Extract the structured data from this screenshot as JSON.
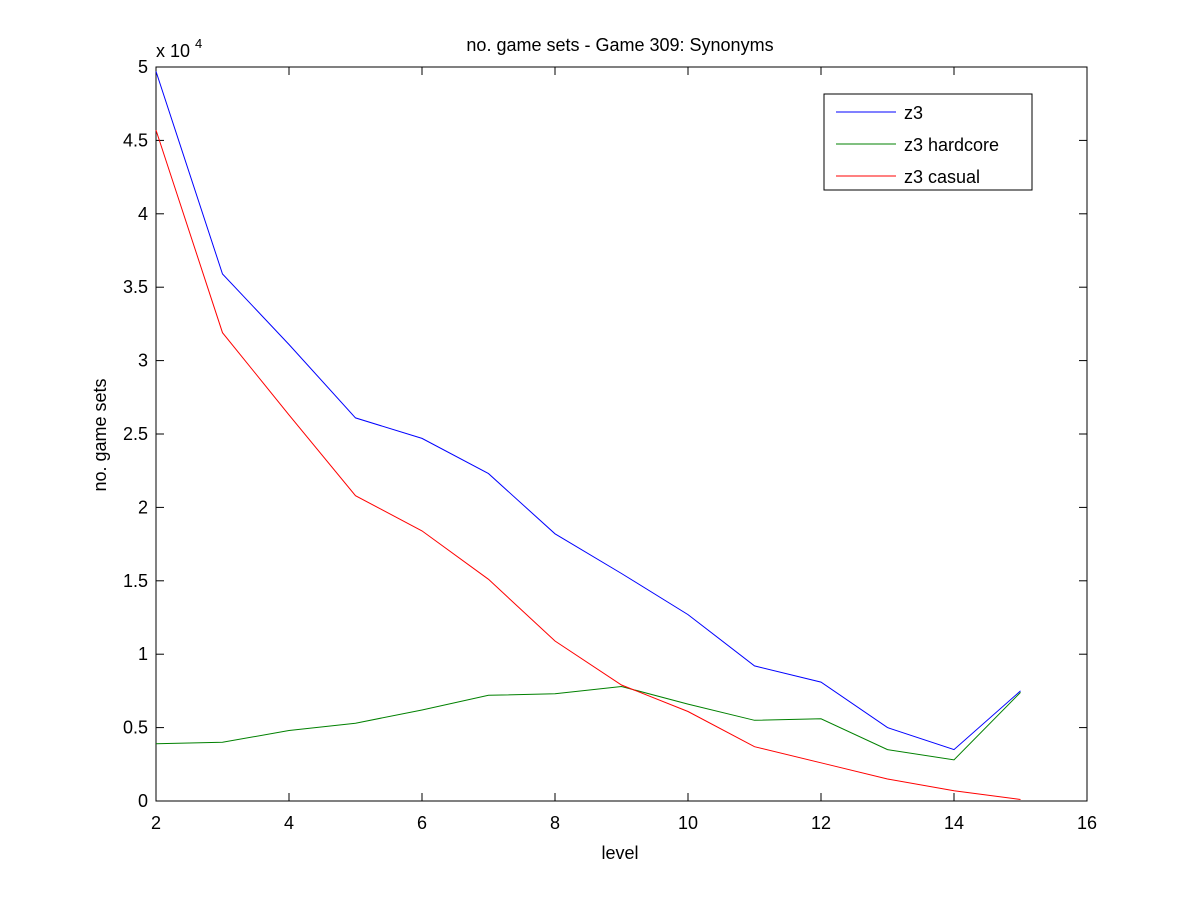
{
  "chart_data": {
    "type": "line",
    "title": "no. game sets - Game 309: Synonyms",
    "xlabel": "level",
    "ylabel": "no. game sets",
    "y_multiplier": {
      "base": "x 10",
      "exponent": "4"
    },
    "xlim": [
      2,
      16
    ],
    "ylim": [
      0,
      50000
    ],
    "x_ticks": [
      2,
      4,
      6,
      8,
      10,
      12,
      14,
      16
    ],
    "y_ticks": [
      0,
      5000,
      10000,
      15000,
      20000,
      25000,
      30000,
      35000,
      40000,
      45000,
      50000
    ],
    "y_tick_labels": [
      "0",
      "0.5",
      "1",
      "1.5",
      "2",
      "2.5",
      "3",
      "3.5",
      "4",
      "4.5",
      "5"
    ],
    "x_tick_labels": [
      "2",
      "4",
      "6",
      "8",
      "10",
      "12",
      "14",
      "16"
    ],
    "grid": false,
    "legend_position": "top-right",
    "x": [
      2,
      3,
      4,
      5,
      6,
      7,
      8,
      9,
      10,
      11,
      12,
      13,
      14,
      15
    ],
    "series": [
      {
        "name": "z3",
        "color": "#0000ff",
        "values": [
          49700,
          35900,
          31100,
          26100,
          24700,
          22300,
          18200,
          15500,
          12700,
          9200,
          8100,
          5000,
          3500,
          7500
        ]
      },
      {
        "name": "z3 hardcore",
        "color": "#008000",
        "values": [
          3900,
          4000,
          4800,
          5300,
          6200,
          7200,
          7300,
          7800,
          6600,
          5500,
          5600,
          3500,
          2800,
          7400
        ]
      },
      {
        "name": "z3 casual",
        "color": "#ff0000",
        "values": [
          45700,
          31900,
          26300,
          20800,
          18400,
          15100,
          10900,
          7900,
          6100,
          3700,
          2600,
          1500,
          700,
          100
        ]
      }
    ]
  }
}
